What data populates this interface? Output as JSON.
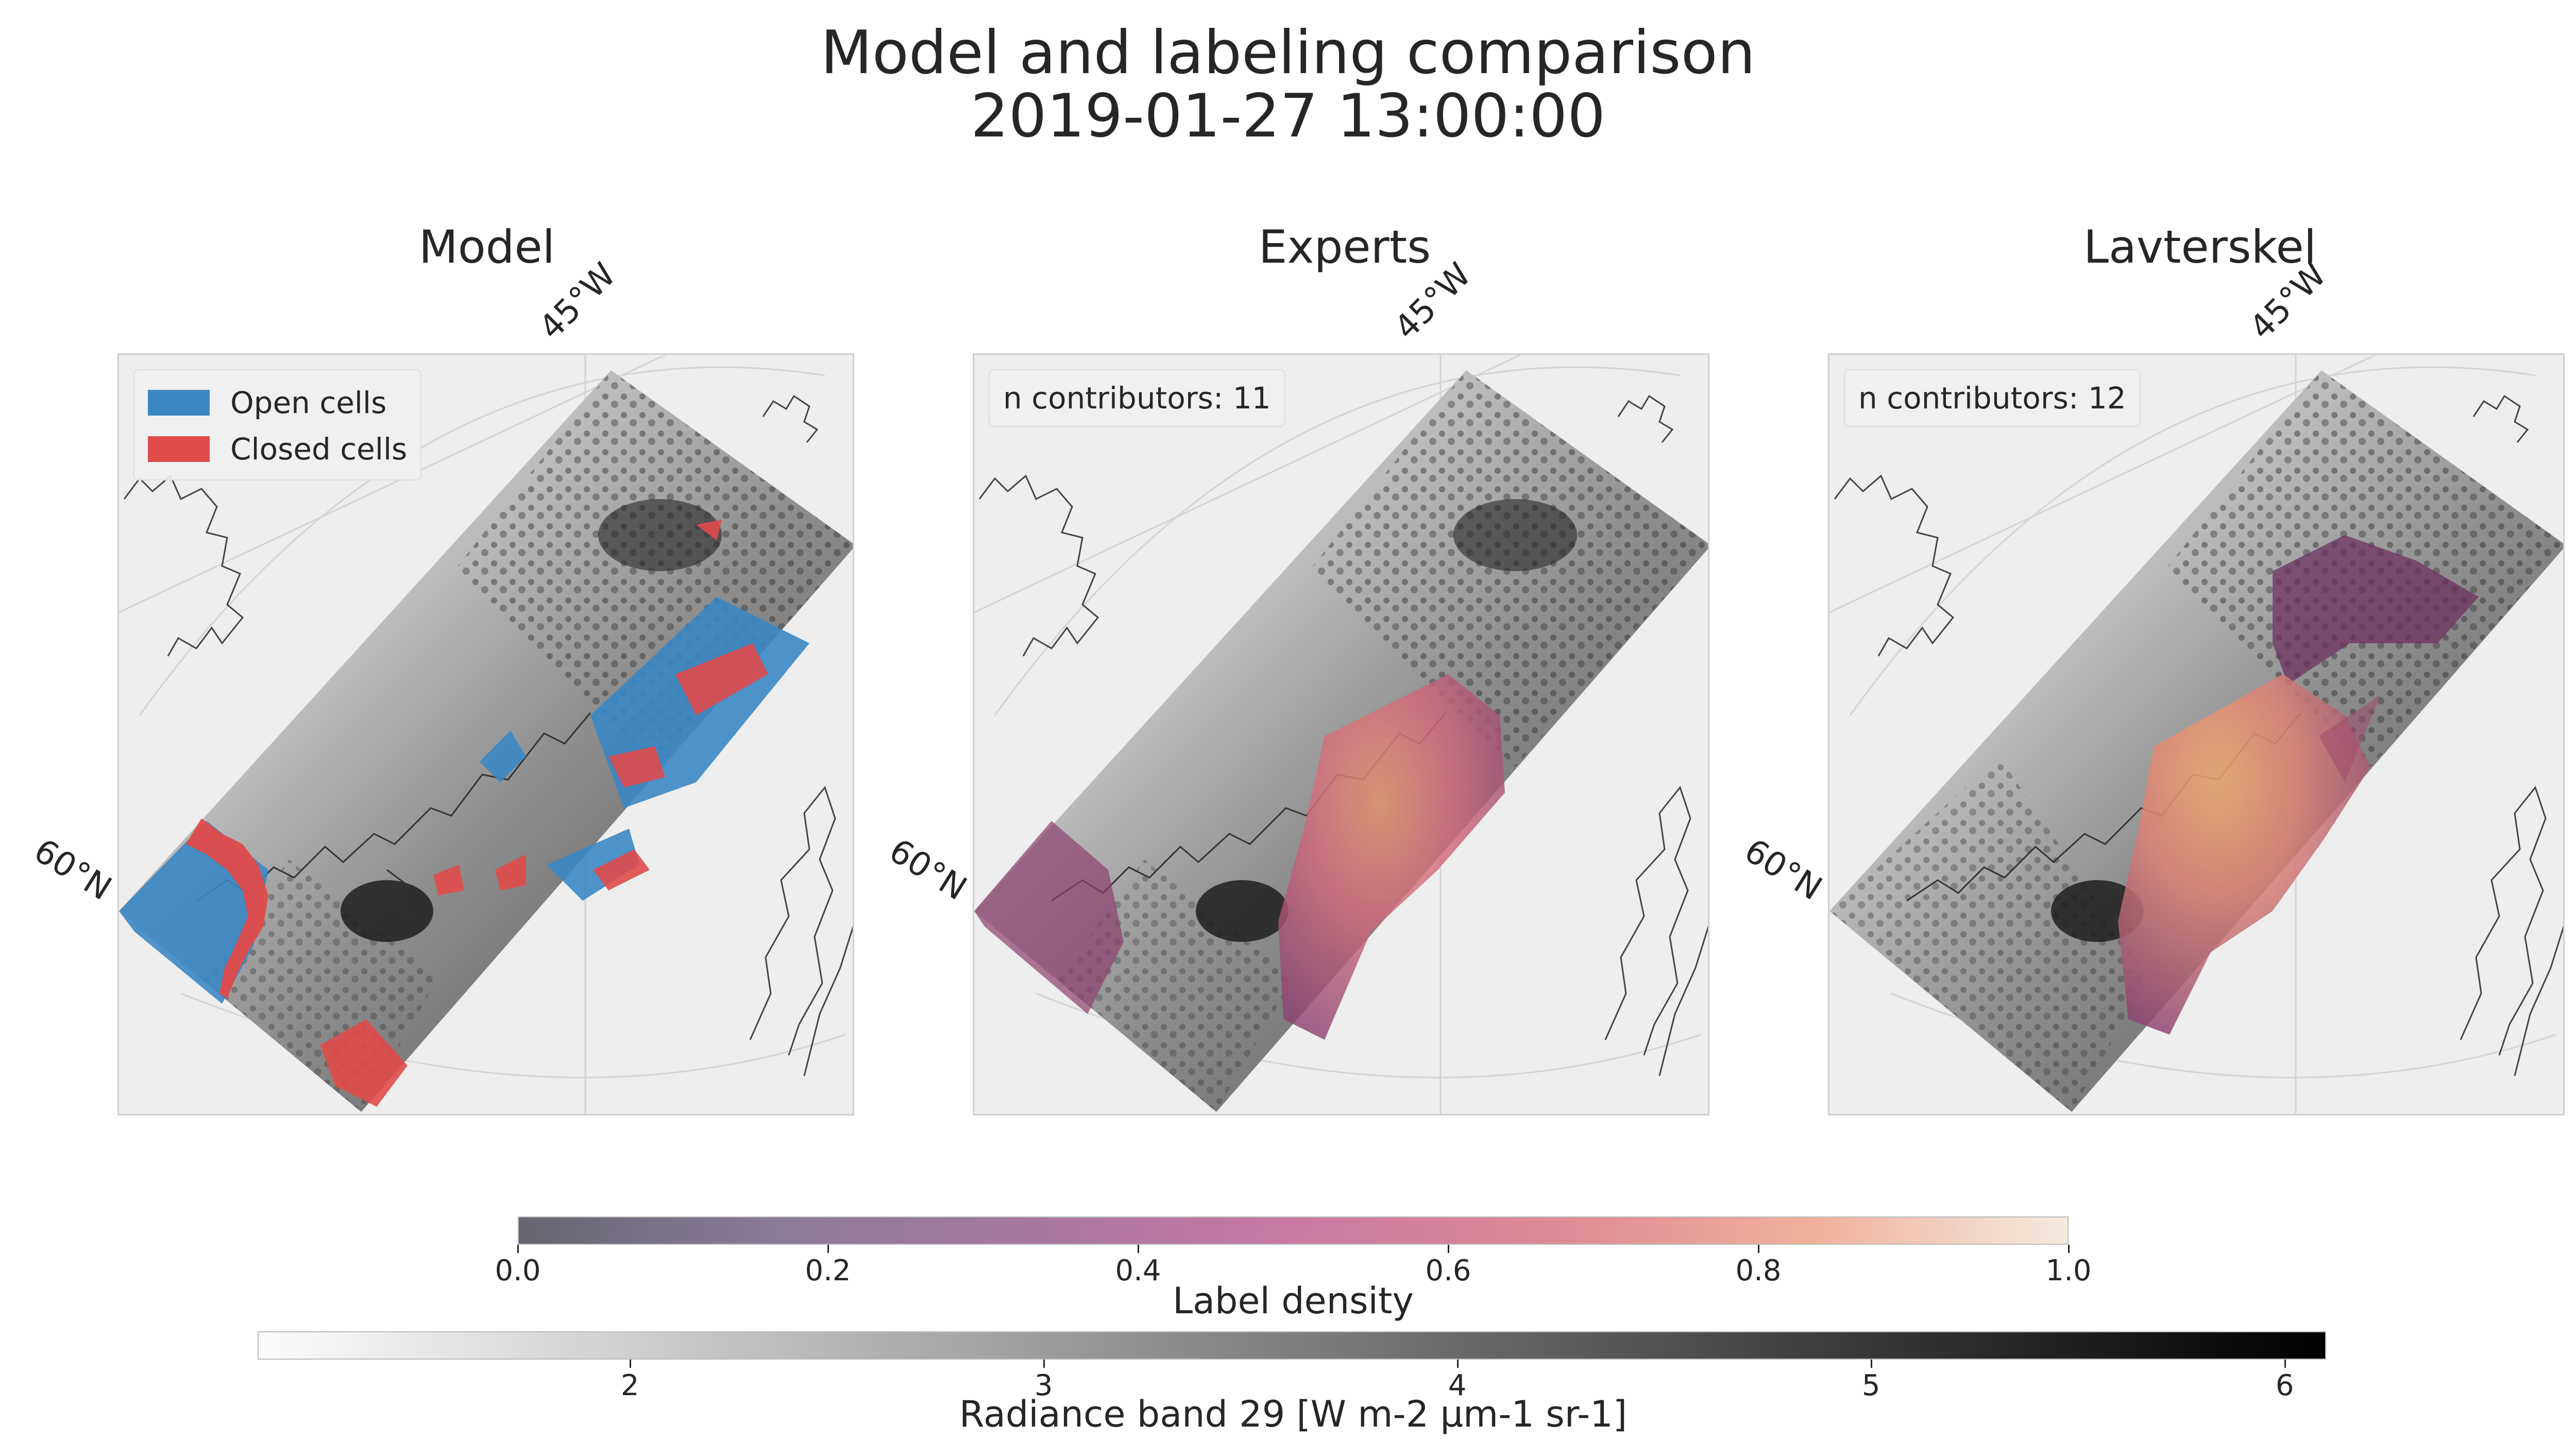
{
  "figure": {
    "title_line1": "Model and labeling comparison",
    "title_line2": "2019-01-27 13:00:00"
  },
  "panels": [
    {
      "title": "Model",
      "lon_label": "45°W",
      "lat_label": "60°N",
      "legend": [
        {
          "label": "Open cells",
          "color": "#3b87c4"
        },
        {
          "label": "Closed cells",
          "color": "#e04b4b"
        }
      ]
    },
    {
      "title": "Experts",
      "lon_label": "45°W",
      "lat_label": "60°N",
      "contributors": "n contributors: 11"
    },
    {
      "title": "Lavterskel",
      "lon_label": "45°W",
      "lat_label": "60°N",
      "contributors": "n contributors: 12"
    }
  ],
  "colorbars": {
    "label_density": {
      "label": "Label density",
      "ticks": [
        "0.0",
        "0.2",
        "0.4",
        "0.6",
        "0.8",
        "1.0"
      ],
      "range": [
        0.0,
        1.0
      ],
      "colors": [
        "#666670",
        "#8a7b98",
        "#a8779f",
        "#c87aa2",
        "#de8996",
        "#f0b09a",
        "#f4eadf"
      ]
    },
    "radiance": {
      "label": "Radiance band 29 [W m-2 µm-1 sr-1]",
      "ticks": [
        "2",
        "3",
        "4",
        "5",
        "6"
      ],
      "range": [
        1.1,
        6.1
      ],
      "colors": [
        "#fcfcfc",
        "#000000"
      ]
    }
  },
  "colors": {
    "open_cells": "#3b87c4",
    "closed_cells": "#e04b4b",
    "density_high": "#e8956e",
    "density_mid": "#c8577a",
    "density_low": "#7a3a66"
  }
}
